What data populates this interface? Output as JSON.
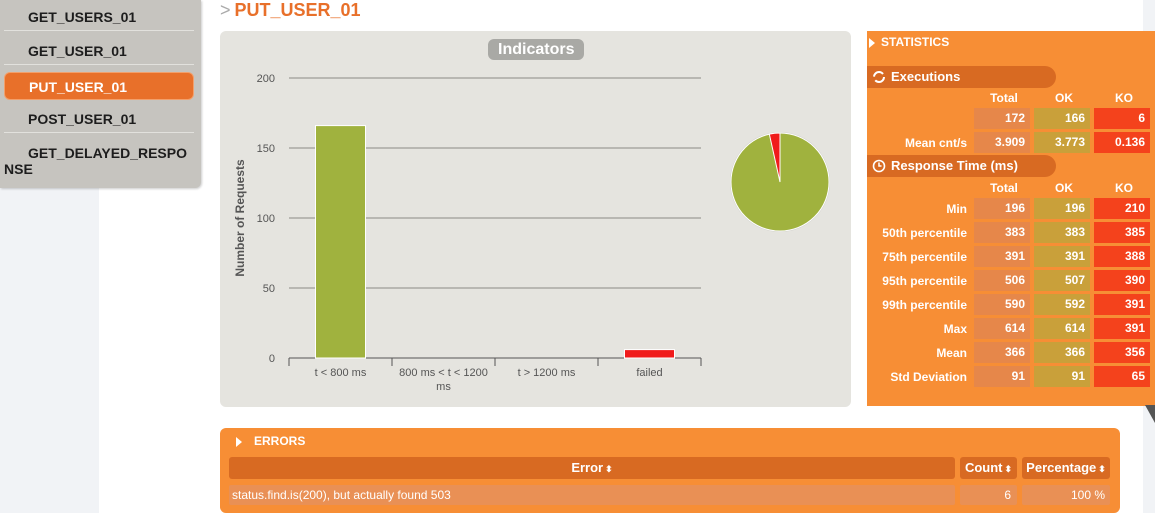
{
  "menu": {
    "items": [
      {
        "label": "GET_USERS_01"
      },
      {
        "label": "GET_USER_01"
      },
      {
        "label": "PUT_USER_01"
      },
      {
        "label": "POST_USER_01"
      },
      {
        "label": "GET_DELAYED_RESPONSE"
      }
    ],
    "active_index": 2
  },
  "page": {
    "breadcrumb_sep": ">",
    "title": "PUT_USER_01"
  },
  "indicators": {
    "title": "Indicators"
  },
  "chart_data": {
    "type": "bar",
    "title": "Indicators",
    "ylabel": "Number of Requests",
    "xlabel": "",
    "ylim": [
      0,
      200
    ],
    "yticks": [
      0,
      50,
      100,
      150,
      200
    ],
    "categories": [
      "t < 800 ms",
      "800 ms < t < 1200 ms",
      "t > 1200 ms",
      "failed"
    ],
    "values": [
      166,
      0,
      0,
      6
    ],
    "colors": [
      "#a0b23e",
      "#f5c342",
      "#f58a42",
      "#f01b1b"
    ],
    "grid": true,
    "pie": {
      "ok": 166,
      "failed": 6,
      "colors": {
        "ok": "#a0b23e",
        "failed": "#f01b1b"
      }
    }
  },
  "stats": {
    "header": "STATISTICS",
    "executions": {
      "title": "Executions",
      "columns": [
        "Total",
        "OK",
        "KO"
      ],
      "rows": [
        {
          "label": "",
          "total": "172",
          "ok": "166",
          "ko": "6"
        },
        {
          "label": "Mean cnt/s",
          "total": "3.909",
          "ok": "3.773",
          "ko": "0.136"
        }
      ]
    },
    "response_time": {
      "title": "Response Time (ms)",
      "columns": [
        "Total",
        "OK",
        "KO"
      ],
      "rows": [
        {
          "label": "Min",
          "total": "196",
          "ok": "196",
          "ko": "210"
        },
        {
          "label": "50th percentile",
          "total": "383",
          "ok": "383",
          "ko": "385"
        },
        {
          "label": "75th percentile",
          "total": "391",
          "ok": "391",
          "ko": "388"
        },
        {
          "label": "95th percentile",
          "total": "506",
          "ok": "507",
          "ko": "390"
        },
        {
          "label": "99th percentile",
          "total": "590",
          "ok": "592",
          "ko": "391"
        },
        {
          "label": "Max",
          "total": "614",
          "ok": "614",
          "ko": "391"
        },
        {
          "label": "Mean",
          "total": "366",
          "ok": "366",
          "ko": "356"
        },
        {
          "label": "Std Deviation",
          "total": "91",
          "ok": "91",
          "ko": "65"
        }
      ]
    }
  },
  "errors": {
    "header": "ERRORS",
    "columns": {
      "error": "Error",
      "count": "Count",
      "percentage": "Percentage"
    },
    "sort_icon": "⬍",
    "rows": [
      {
        "error": "status.find.is(200), but actually found 503",
        "count": "6",
        "percentage": "100 %"
      }
    ]
  }
}
